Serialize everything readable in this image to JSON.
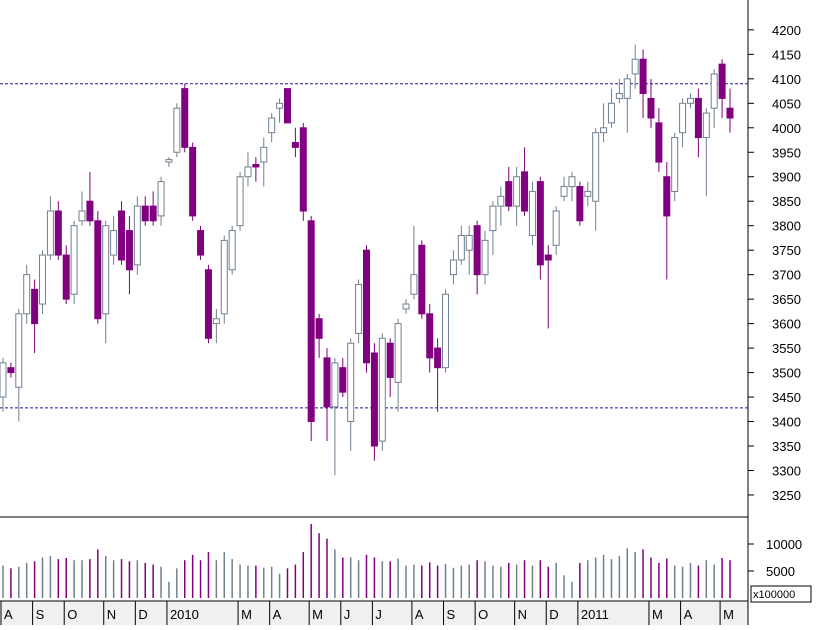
{
  "chart_data": {
    "type": "candlestick",
    "categories": [
      "A",
      null,
      null,
      null,
      "S",
      null,
      null,
      null,
      "O",
      null,
      null,
      null,
      null,
      "N",
      null,
      null,
      null,
      "D",
      null,
      null,
      null,
      "2010",
      null,
      null,
      null,
      null,
      null,
      null,
      null,
      null,
      "M",
      null,
      null,
      null,
      "A",
      null,
      null,
      null,
      null,
      "M",
      null,
      null,
      null,
      "J",
      null,
      null,
      null,
      "J",
      null,
      null,
      null,
      null,
      "A",
      null,
      null,
      null,
      "S",
      null,
      null,
      null,
      "O",
      null,
      null,
      null,
      null,
      "N",
      null,
      null,
      null,
      "D",
      null,
      null,
      null,
      "2011",
      null,
      null,
      null,
      null,
      null,
      null,
      null,
      null,
      "M",
      null,
      null,
      null,
      "A",
      null,
      null,
      null,
      null,
      "M",
      null
    ],
    "open": [
      3450,
      3510,
      3470,
      3620,
      3670,
      3640,
      3740,
      3830,
      3740,
      3660,
      3810,
      3850,
      3810,
      3620,
      3740,
      3830,
      3790,
      3720,
      3840,
      3840,
      3820,
      3930,
      3950,
      4080,
      3960,
      3790,
      3710,
      3600,
      3620,
      3710,
      3800,
      3900,
      3925,
      3930,
      3990,
      4040,
      4080,
      3970,
      4000,
      3810,
      3610,
      3530,
      3430,
      3510,
      3400,
      3580,
      3750,
      3540,
      3360,
      3560,
      3480,
      3630,
      3660,
      3760,
      3620,
      3550,
      3510,
      3700,
      3730,
      3750,
      3800,
      3700,
      3790,
      3840,
      3890,
      3840,
      3910,
      3780,
      3890,
      3740,
      3760,
      3860,
      3880,
      3880,
      3860,
      3850,
      3990,
      4010,
      4060,
      4060,
      4110,
      4140,
      4060,
      4010,
      3900,
      3870,
      3990,
      4050,
      4060,
      3980,
      4040,
      4130,
      4040
    ],
    "high": [
      3530,
      3520,
      3630,
      3720,
      3690,
      3750,
      3860,
      3850,
      3760,
      3810,
      3870,
      3910,
      3830,
      3810,
      3820,
      3850,
      3820,
      3860,
      3860,
      3870,
      3900,
      3940,
      4050,
      4090,
      3970,
      3800,
      3720,
      3630,
      3780,
      3800,
      3910,
      3950,
      3940,
      3980,
      4030,
      4060,
      4080,
      4000,
      4010,
      3820,
      3620,
      3550,
      3530,
      3530,
      3570,
      3690,
      3760,
      3560,
      3580,
      3570,
      3610,
      3650,
      3800,
      3770,
      3640,
      3570,
      3670,
      3750,
      3800,
      3800,
      3810,
      3790,
      3850,
      3880,
      3920,
      3920,
      3960,
      3890,
      3900,
      3760,
      3840,
      3900,
      3910,
      3890,
      3890,
      4000,
      4050,
      4080,
      4100,
      4110,
      4170,
      4160,
      4100,
      4040,
      3930,
      3990,
      4060,
      4070,
      4080,
      4040,
      4120,
      4140,
      4080
    ],
    "low": [
      3420,
      3490,
      3400,
      3600,
      3540,
      3620,
      3730,
      3730,
      3640,
      3640,
      3800,
      3800,
      3600,
      3560,
      3720,
      3720,
      3660,
      3700,
      3800,
      3800,
      3800,
      3920,
      3940,
      3950,
      3810,
      3730,
      3560,
      3560,
      3600,
      3700,
      3790,
      3880,
      3890,
      3880,
      3970,
      4010,
      4010,
      3940,
      3810,
      3360,
      3530,
      3360,
      3290,
      3450,
      3340,
      3560,
      3500,
      3320,
      3340,
      3450,
      3420,
      3620,
      3650,
      3610,
      3500,
      3420,
      3500,
      3680,
      3720,
      3700,
      3660,
      3680,
      3740,
      3800,
      3830,
      3800,
      3820,
      3760,
      3690,
      3590,
      3740,
      3850,
      3850,
      3800,
      3840,
      3790,
      3970,
      4000,
      4050,
      3990,
      4080,
      4020,
      4000,
      3910,
      3690,
      3850,
      3960,
      4040,
      3940,
      3860,
      4000,
      4020,
      3990
    ],
    "close": [
      3520,
      3500,
      3620,
      3700,
      3600,
      3740,
      3830,
      3740,
      3650,
      3800,
      3830,
      3810,
      3610,
      3800,
      3790,
      3730,
      3710,
      3840,
      3810,
      3810,
      3890,
      3935,
      4040,
      3960,
      3820,
      3740,
      3570,
      3610,
      3770,
      3790,
      3900,
      3920,
      3920,
      3960,
      4020,
      4050,
      4010,
      3960,
      3830,
      3400,
      3570,
      3430,
      3520,
      3460,
      3560,
      3680,
      3520,
      3350,
      3570,
      3490,
      3600,
      3640,
      3700,
      3620,
      3530,
      3510,
      3660,
      3730,
      3780,
      3780,
      3700,
      3770,
      3840,
      3860,
      3840,
      3900,
      3830,
      3870,
      3720,
      3730,
      3830,
      3880,
      3900,
      3810,
      3870,
      3990,
      4000,
      4050,
      4070,
      4100,
      4140,
      4070,
      4020,
      3930,
      3820,
      3980,
      4050,
      4060,
      3980,
      4030,
      4110,
      4060,
      4020
    ],
    "volume": [
      6000,
      5500,
      5800,
      6500,
      6800,
      7500,
      7800,
      7200,
      7400,
      7000,
      7000,
      7200,
      9000,
      7800,
      7000,
      7200,
      6800,
      7000,
      6500,
      6200,
      5800,
      3000,
      5500,
      7000,
      8000,
      7000,
      8500,
      7000,
      8500,
      7200,
      6200,
      6000,
      6000,
      5600,
      5800,
      4500,
      5500,
      6200,
      8500,
      13700,
      12000,
      11000,
      9000,
      7500,
      7500,
      7000,
      8000,
      7500,
      6800,
      6800,
      7300,
      6000,
      6200,
      6000,
      6600,
      6000,
      6300,
      5600,
      6000,
      6200,
      7000,
      6800,
      6000,
      5800,
      6500,
      6200,
      7000,
      6000,
      7000,
      5800,
      6500,
      4200,
      3000,
      6500,
      7000,
      7500,
      8000,
      7200,
      7800,
      9200,
      8500,
      9000,
      7500,
      6500,
      7300,
      6000,
      5800,
      6500,
      6000,
      7000,
      6200,
      7400,
      7000
    ],
    "up_color": "#ffffff",
    "up_stroke": "#708090",
    "down_color": "#800080",
    "ylim": [
      3205,
      4261
    ],
    "yticks": [
      3250,
      3300,
      3350,
      3400,
      3450,
      3500,
      3550,
      3600,
      3650,
      3700,
      3750,
      3800,
      3850,
      3900,
      3950,
      4000,
      4050,
      4100,
      4150,
      4200
    ],
    "volume_ylim": [
      0,
      15000
    ],
    "volume_yticks": [
      5000,
      10000
    ],
    "volume_unit": "x100000",
    "hlines": [
      4090,
      3428
    ]
  }
}
